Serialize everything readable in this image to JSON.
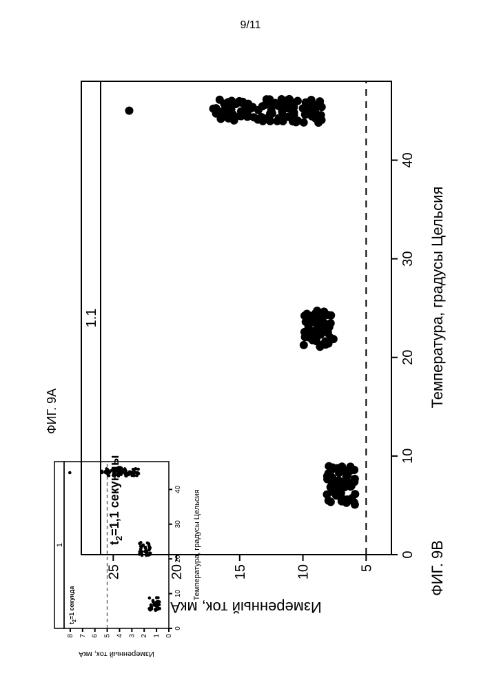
{
  "page_number": "9/11",
  "figA_label": "ФИГ. 9A",
  "figB_label": "ФИГ. 9B",
  "chartB": {
    "type": "scatter",
    "panel_title": "1.1",
    "inset_text": "t₂=1,1 секунды",
    "xlabel": "Температура, градусы Цельсия",
    "ylabel": "Измеренный ток, мкА",
    "xlim": [
      0,
      48
    ],
    "ylim": [
      3,
      26
    ],
    "xticks": [
      0,
      10,
      20,
      30,
      40
    ],
    "yticks": [
      5,
      10,
      15,
      20,
      25
    ],
    "hline_y": 5,
    "point_r": 6,
    "colors": {
      "points": "#000000",
      "axis": "#000000",
      "dash": "#000000",
      "bg": "#ffffff"
    },
    "clusters": [
      {
        "x_center": 7,
        "x_spread": 2.0,
        "y_min": 5.8,
        "y_max": 8.2,
        "n": 55
      },
      {
        "x_center": 23,
        "x_spread": 2.0,
        "y_min": 7.5,
        "y_max": 10.0,
        "n": 55
      },
      {
        "x_center": 45,
        "x_spread": 1.2,
        "y_min": 8.5,
        "y_max": 16.6,
        "n": 110
      },
      {
        "x_center": 45,
        "x_spread": 0.3,
        "y_min": 16.8,
        "y_max": 17.1,
        "n": 3
      },
      {
        "x_center": 45,
        "x_spread": 0.2,
        "y_min": 23.6,
        "y_max": 23.8,
        "n": 1
      }
    ]
  },
  "chartA": {
    "type": "scatter",
    "panel_title": "1",
    "inset_text": "t₂=1 секунда",
    "xlabel": "Температура, градусы Цельсия",
    "ylabel": "Измеренный ток, мкА",
    "xlim": [
      0,
      48
    ],
    "ylim": [
      0,
      8.5
    ],
    "xticks": [
      0,
      10,
      20,
      30,
      40
    ],
    "yticks": [
      0,
      1,
      2,
      3,
      4,
      5,
      6,
      7,
      8
    ],
    "hline_y": 5,
    "point_r": 2.3,
    "colors": {
      "points": "#000000",
      "axis": "#000000",
      "dash": "#888888",
      "bg": "#ffffff"
    },
    "clusters": [
      {
        "x_center": 7,
        "x_spread": 2.0,
        "y_min": 0.7,
        "y_max": 1.6,
        "n": 35
      },
      {
        "x_center": 23,
        "x_spread": 2.0,
        "y_min": 1.5,
        "y_max": 2.4,
        "n": 35
      },
      {
        "x_center": 45,
        "x_spread": 1.2,
        "y_min": 2.4,
        "y_max": 5.2,
        "n": 80
      },
      {
        "x_center": 45,
        "x_spread": 0.3,
        "y_min": 5.4,
        "y_max": 5.5,
        "n": 2
      },
      {
        "x_center": 45,
        "x_spread": 0.2,
        "y_min": 8.0,
        "y_max": 8.1,
        "n": 1
      }
    ]
  }
}
